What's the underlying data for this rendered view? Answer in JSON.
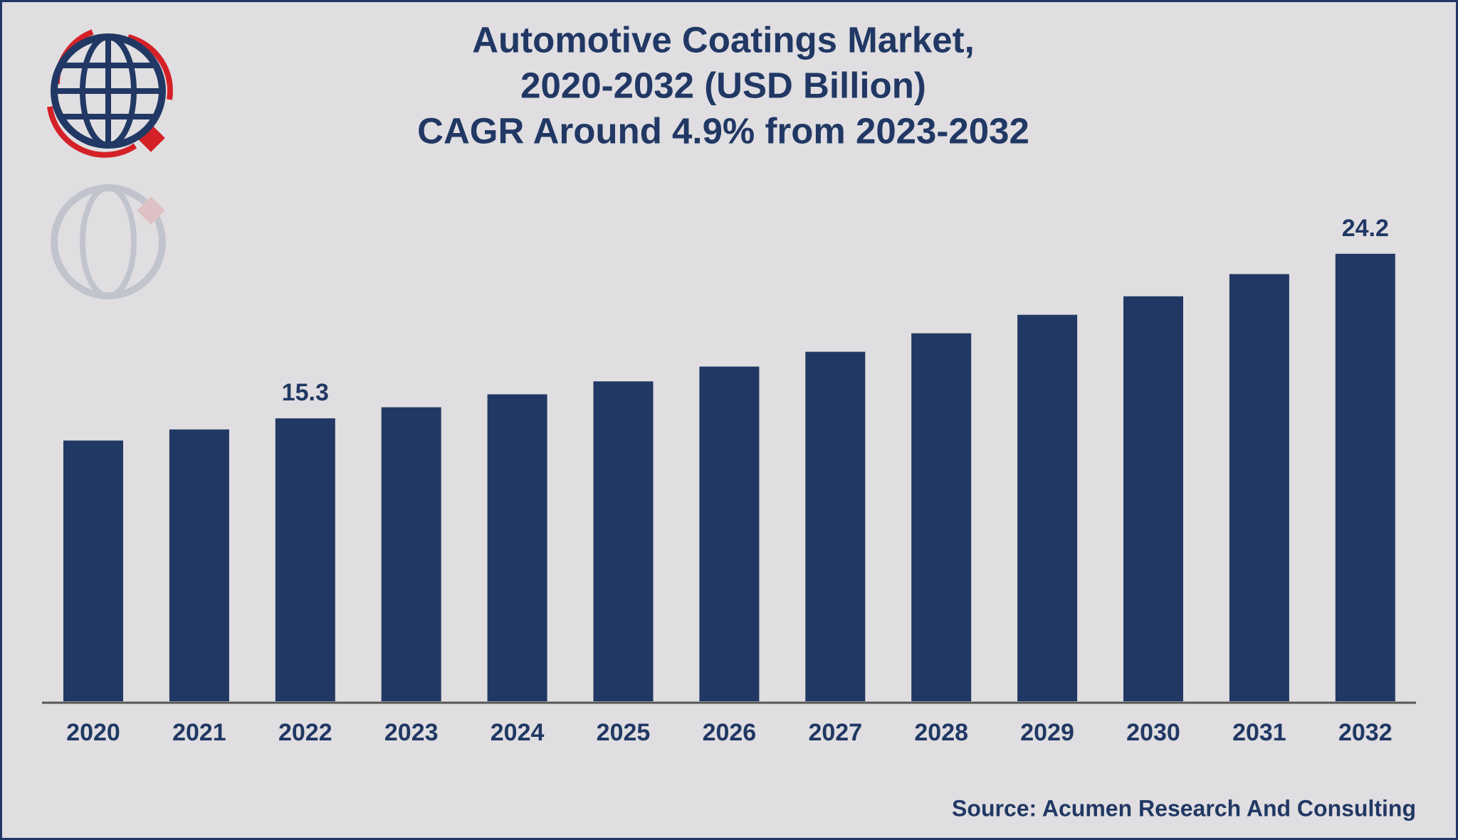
{
  "chart_data": {
    "type": "bar",
    "title": [
      "Automotive Coatings Market,",
      "2020-2032 (USD Billion)",
      "CAGR Around 4.9% from 2023-2032"
    ],
    "categories": [
      "2020",
      "2021",
      "2022",
      "2023",
      "2024",
      "2025",
      "2026",
      "2027",
      "2028",
      "2029",
      "2030",
      "2031",
      "2032"
    ],
    "values": [
      14.1,
      14.7,
      15.3,
      15.9,
      16.6,
      17.3,
      18.1,
      18.9,
      19.9,
      20.9,
      21.9,
      23.1,
      24.2
    ],
    "value_labels": [
      null,
      null,
      "15.3",
      null,
      null,
      null,
      null,
      null,
      null,
      null,
      null,
      null,
      "24.2"
    ],
    "color": "#213864",
    "source": "Source: Acumen Research And Consulting"
  }
}
